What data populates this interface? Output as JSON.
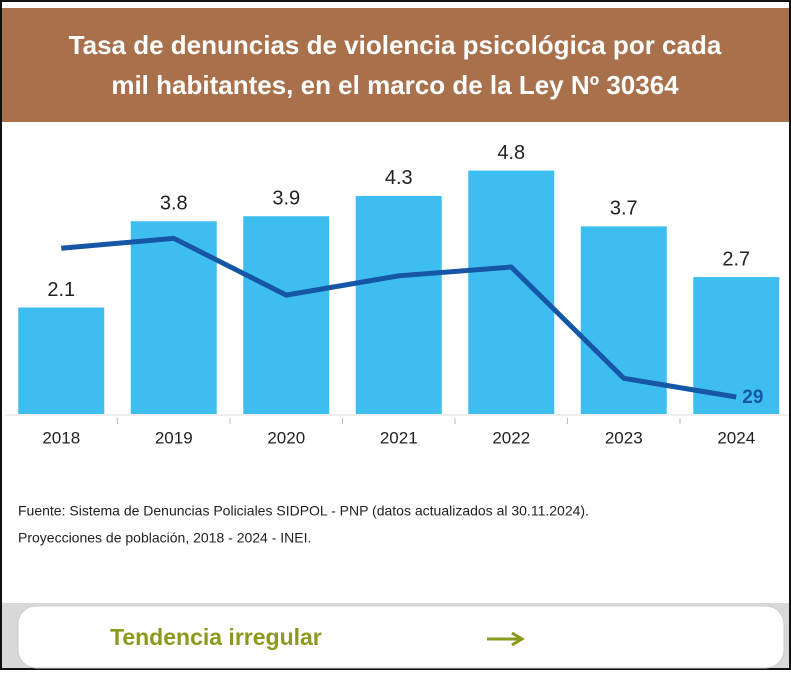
{
  "chart_data": {
    "type": "bar",
    "title": "Tasa de denuncias de violencia psicológica por cada mil habitantes, en el marco de la Ley Nº 30364",
    "categories": [
      "2018",
      "2019",
      "2020",
      "2021",
      "2022",
      "2023",
      "2024"
    ],
    "series": [
      {
        "color": "#3ebdf1",
        "values": [
          2.1,
          3.8,
          3.9,
          4.3,
          4.8,
          3.7,
          2.7
        ]
      },
      {
        "type": "line",
        "axis": "y2",
        "color": "#1656a6",
        "values": [
          283,
          300,
          203,
          236,
          251,
          61,
          29
        ],
        "value_labels": [
          null,
          null,
          null,
          null,
          null,
          null,
          "29"
        ]
      }
    ],
    "ylim": [
      0,
      5.6
    ],
    "y2lim": [
      0,
      485
    ],
    "source": "Fuente: Sistema de Denuncias Policiales SIDPOL - PNP (datos actualizados al 30.11.2024).",
    "source2": "Proyecciones de población, 2018 - 2024 - INEI.",
    "button": "Tendencia irregular"
  }
}
